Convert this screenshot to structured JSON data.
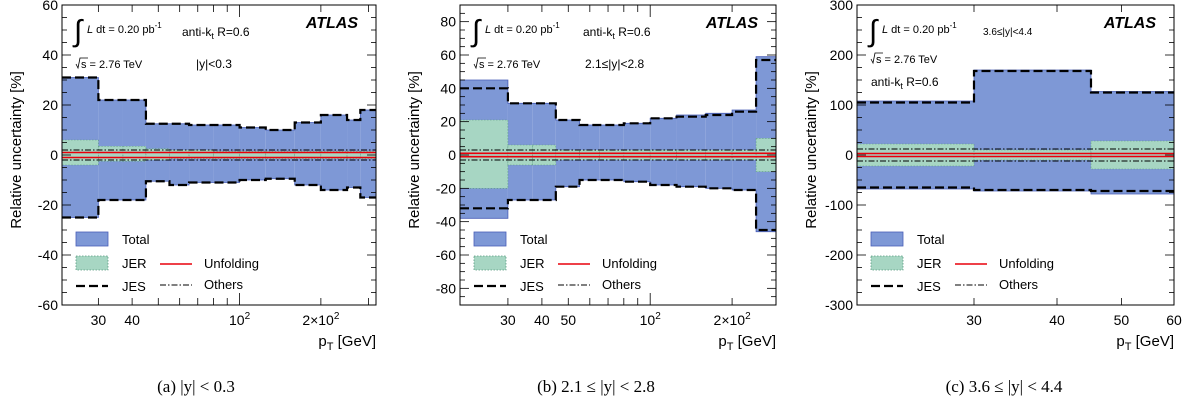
{
  "chart_data": [
    {
      "type": "area",
      "caption": "(a) |y| < 0.3",
      "ylabel": "Relative uncertainty [%]",
      "xlabel": "p",
      "xlabel_sub": "T",
      "xlabel_unit": " [GeV]",
      "xscale": "log",
      "xlim": [
        22,
        320
      ],
      "ylim": [
        -60,
        60
      ],
      "yticks": [
        -60,
        -40,
        -20,
        0,
        20,
        40,
        60
      ],
      "xticklabels": [
        {
          "x": 30,
          "label": "30"
        },
        {
          "x": 40,
          "label": "40"
        },
        {
          "x": 100,
          "label": "10",
          "sup": "2"
        },
        {
          "x": 200,
          "label": "2×10",
          "sup": "2"
        }
      ],
      "experiment": "ATLAS",
      "lumi_text": "L dt = 0.20 pb",
      "lumi_sup": "-1",
      "energy_text": "s = 2.76 TeV",
      "algo_text": "anti-k",
      "algo_sub": "t",
      "algo_rest": " R=0.6",
      "range_text": "|y|<0.3",
      "bins": [
        22,
        30,
        37,
        45,
        55,
        65,
        80,
        100,
        125,
        160,
        200,
        250,
        280,
        320
      ],
      "total_up": [
        31,
        22,
        22,
        12.5,
        12.5,
        12,
        12,
        11,
        10,
        13,
        16,
        14,
        18
      ],
      "total_down": [
        -25,
        -18,
        -18,
        -10.5,
        -12,
        -11,
        -11,
        -10,
        -9.5,
        -12,
        -14,
        -13,
        -17
      ],
      "jer_up": [
        6,
        3.5,
        3.5,
        2.5,
        2,
        2,
        1.5,
        1.5,
        1.5,
        1.5,
        1.5,
        1.5,
        1.5
      ],
      "jer_down": [
        -4,
        -2.5,
        -2.5,
        -2,
        -1.5,
        -1.5,
        -1.5,
        -1.5,
        -1.5,
        -1.5,
        -1.5,
        -1.5,
        -1.5
      ],
      "jes_up": [
        31,
        22,
        22,
        12.5,
        12.5,
        12,
        12,
        11,
        10,
        13,
        16,
        14,
        18
      ],
      "jes_down": [
        -25,
        -18,
        -18,
        -10.5,
        -12,
        -11,
        -11,
        -10,
        -9.5,
        -12,
        -14,
        -13,
        -17
      ],
      "unfold": [
        1,
        -1
      ],
      "others": [
        2,
        -2
      ],
      "legend": [
        "Total",
        "JER",
        "Unfolding",
        "JES",
        "Others"
      ]
    },
    {
      "type": "area",
      "caption": "(b) 2.1 ≤ |y| < 2.8",
      "ylabel": "Relative uncertainty [%]",
      "xlabel": "p",
      "xlabel_sub": "T",
      "xlabel_unit": " [GeV]",
      "xscale": "log",
      "xlim": [
        20,
        290
      ],
      "ylim": [
        -90,
        90
      ],
      "yticks": [
        -80,
        -60,
        -40,
        -20,
        0,
        20,
        40,
        60,
        80
      ],
      "xticklabels": [
        {
          "x": 30,
          "label": "30"
        },
        {
          "x": 40,
          "label": "40"
        },
        {
          "x": 50,
          "label": "50"
        },
        {
          "x": 100,
          "label": "10",
          "sup": "2"
        },
        {
          "x": 200,
          "label": "2×10",
          "sup": "2"
        }
      ],
      "experiment": "ATLAS",
      "lumi_text": "L dt = 0.20 pb",
      "lumi_sup": "-1",
      "energy_text": "s = 2.76 TeV",
      "algo_text": "anti-k",
      "algo_sub": "t",
      "algo_rest": " R=0.6",
      "range_text": "2.1≤|y|<2.8",
      "bins": [
        20,
        30,
        37,
        45,
        55,
        65,
        80,
        100,
        125,
        160,
        200,
        245,
        290
      ],
      "total_up": [
        45,
        31,
        31,
        21,
        18,
        18,
        19,
        22,
        24,
        25,
        27,
        59
      ],
      "total_down": [
        -38,
        -27,
        -27,
        -19,
        -15,
        -15,
        -16,
        -18,
        -19,
        -20,
        -21,
        -46
      ],
      "jer_up": [
        21,
        6,
        6,
        3,
        3,
        3,
        3,
        3,
        3,
        3,
        3,
        10
      ],
      "jer_down": [
        -20,
        -6,
        -6,
        -3,
        -3,
        -3,
        -3,
        -3,
        -3,
        -3,
        -3,
        -10
      ],
      "jes_up": [
        40,
        31,
        31,
        21,
        18,
        18,
        19,
        22,
        23,
        24,
        26,
        57
      ],
      "jes_down": [
        -32,
        -27,
        -27,
        -19,
        -15,
        -15,
        -16,
        -18,
        -19,
        -20,
        -21,
        -45
      ],
      "unfold": [
        1,
        -1
      ],
      "others": [
        3,
        -3
      ],
      "legend": [
        "Total",
        "JER",
        "Unfolding",
        "JES",
        "Others"
      ]
    },
    {
      "type": "area",
      "caption": "(c) 3.6 ≤ |y| < 4.4",
      "ylabel": "Relative uncertainty [%]",
      "xlabel": "p",
      "xlabel_sub": "T",
      "xlabel_unit": " [GeV]",
      "xscale": "log",
      "xlim": [
        20,
        60
      ],
      "ylim": [
        -300,
        300
      ],
      "yticks": [
        -300,
        -200,
        -100,
        0,
        100,
        200,
        300
      ],
      "xticklabels": [
        {
          "x": 30,
          "label": "30"
        },
        {
          "x": 40,
          "label": "40"
        },
        {
          "x": 50,
          "label": "50"
        },
        {
          "x": 60,
          "label": "60"
        }
      ],
      "experiment": "ATLAS",
      "lumi_text": "L dt = 0.20 pb",
      "lumi_sup": "-1",
      "energy_text": "s = 2.76 TeV",
      "algo_text": "anti-k",
      "algo_sub": "t",
      "algo_rest": " R=0.6",
      "range_text": "3.6≤|y|<4.4",
      "bins": [
        20,
        30,
        45,
        60
      ],
      "total_up": [
        108,
        170,
        127
      ],
      "total_down": [
        -68,
        -72,
        -78
      ],
      "jer_up": [
        22,
        10,
        28
      ],
      "jer_down": [
        -22,
        -10,
        -28
      ],
      "jes_up": [
        105,
        168,
        125
      ],
      "jes_down": [
        -65,
        -70,
        -72
      ],
      "unfold": [
        3,
        -3
      ],
      "others": [
        12,
        -12
      ],
      "legend": [
        "Total",
        "JER",
        "Unfolding",
        "JES",
        "Others"
      ]
    }
  ],
  "colors": {
    "total": "#7e98d6",
    "total_stroke": "#4a5fb8",
    "jer": "#a7d6c3",
    "jer_stroke": "#5a9a80",
    "unfolding": "#e8000b",
    "jes": "#000000",
    "others": "#000000"
  }
}
